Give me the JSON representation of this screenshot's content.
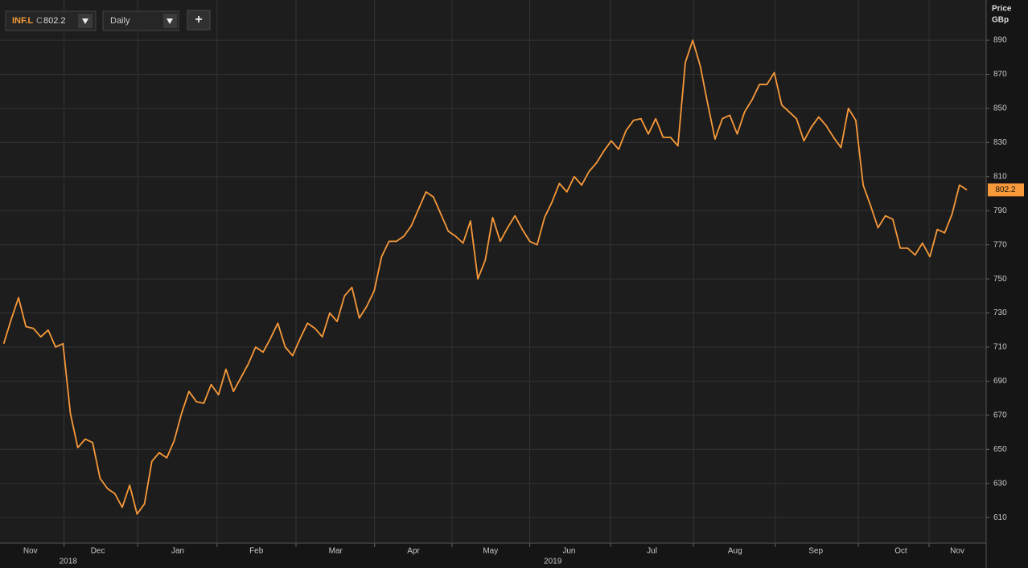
{
  "header": {
    "ric": "INF.L",
    "close_prefix": "C",
    "interval": "Daily",
    "add_button": "+"
  },
  "chart_data": {
    "type": "line",
    "y_axis_title": "Price",
    "y_axis_unit": "GBp",
    "color": "#f7993a",
    "values": [
      712,
      726,
      739,
      722,
      721,
      716,
      720,
      710,
      712,
      671,
      651,
      656,
      654,
      633,
      627,
      624,
      616,
      629,
      612,
      618,
      643,
      648,
      645,
      655,
      671,
      684,
      678,
      677,
      688,
      682,
      697,
      684,
      692,
      700,
      710,
      707,
      715,
      724,
      710,
      705,
      715,
      724,
      721,
      716,
      730,
      725,
      740,
      745,
      727,
      734,
      743,
      763,
      772,
      772,
      775,
      781,
      791,
      801,
      798,
      788,
      778,
      775,
      771,
      784,
      750,
      761,
      786,
      772,
      780,
      787,
      779,
      772,
      770,
      786,
      795,
      806,
      801,
      810,
      805,
      813,
      818,
      825,
      831,
      826,
      837,
      843,
      844,
      835,
      844,
      833,
      833,
      828,
      877,
      890,
      875,
      853,
      832,
      844,
      846,
      835,
      848,
      855,
      864,
      864,
      871,
      852,
      848,
      844,
      831,
      839,
      845,
      840,
      833,
      827,
      850,
      843,
      805,
      793,
      780,
      787,
      785,
      768,
      768,
      764,
      771,
      763,
      779,
      777,
      788,
      805,
      802.2
    ],
    "xlim": [
      -0.5,
      132.6
    ],
    "ylim": [
      595,
      913.6
    ],
    "yticks": [
      610,
      630,
      650,
      670,
      690,
      710,
      730,
      750,
      770,
      790,
      810,
      830,
      850,
      870,
      890
    ],
    "xticks": [
      {
        "value": 3.6,
        "label": "Nov"
      },
      {
        "value": 12.7,
        "label": "Dec"
      },
      {
        "value": 23.5,
        "label": "Jan"
      },
      {
        "value": 34.1,
        "label": "Feb"
      },
      {
        "value": 44.8,
        "label": "Mar"
      },
      {
        "value": 55.3,
        "label": "Apr"
      },
      {
        "value": 65.7,
        "label": "May"
      },
      {
        "value": 76.3,
        "label": "Jun"
      },
      {
        "value": 87.5,
        "label": "Jul"
      },
      {
        "value": 98.7,
        "label": "Aug"
      },
      {
        "value": 109.6,
        "label": "Sep"
      },
      {
        "value": 121.1,
        "label": "Oct"
      },
      {
        "value": 128.7,
        "label": "Nov"
      }
    ],
    "year_labels": [
      {
        "value": 8.7,
        "label": "2018"
      },
      {
        "value": 74.1,
        "label": "2019"
      }
    ],
    "grid": true
  }
}
